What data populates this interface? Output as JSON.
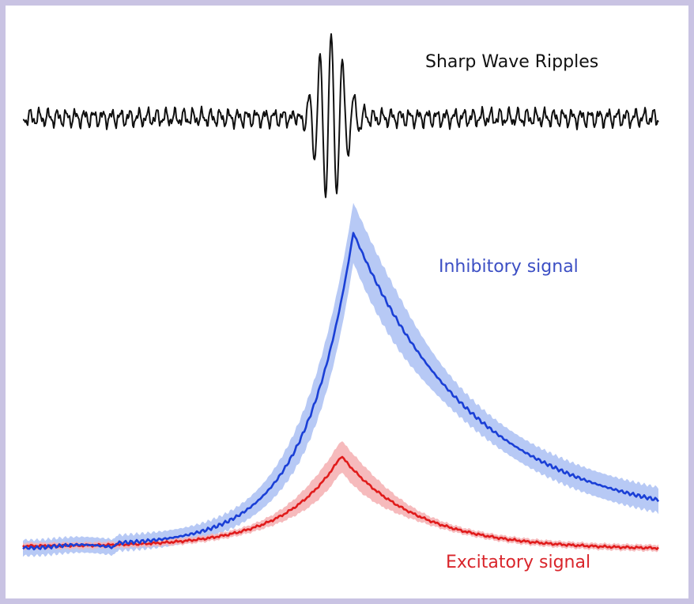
{
  "labels": {
    "ripples": "Sharp Wave Ripples",
    "inhibitory": "Inhibitory signal",
    "excitatory": "Excitatory signal"
  },
  "colors": {
    "frame": "#c9c3e3",
    "background": "#ffffff",
    "ripple_trace": "#111111",
    "inhibitory_line": "#1a3fd6",
    "inhibitory_band": "#b7c9f5",
    "excitatory_line": "#e01b1b",
    "excitatory_band": "#f5b3b5",
    "inhibitory_text": "#3c4fc4",
    "excitatory_text": "#d9252b"
  }
}
